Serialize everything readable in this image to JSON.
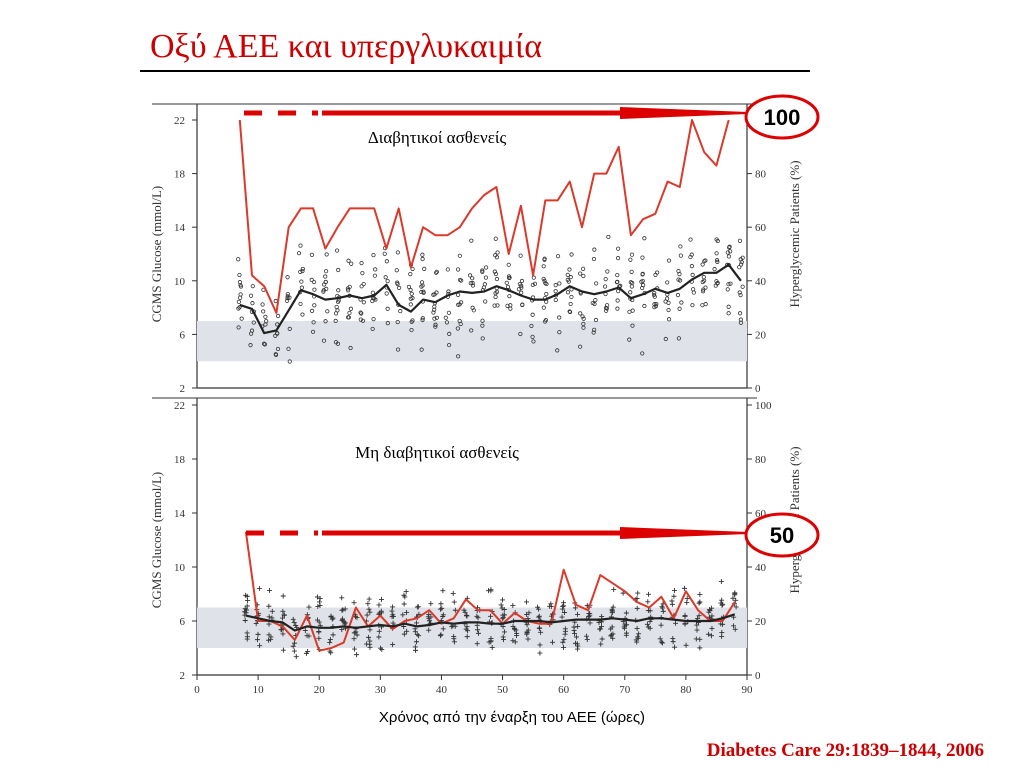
{
  "slide": {
    "title": "Οξύ ΑΕΕ και υπεργλυκαιμία",
    "x_caption": "Χρόνος από την έναρξη του ΑΕΕ (ώρες)",
    "citation": "Diabetes Care 29:1839–1844, 2006"
  },
  "colors": {
    "red": "#d93a2b",
    "arrow_red": "#dd0000",
    "dark": "#222222",
    "band": "#dfe2e8"
  },
  "chart_data": [
    {
      "type": "line",
      "panel": "top",
      "annotation_title": "Διαβητικοί ασθενείς",
      "callout": "100",
      "ylabel": "CGMS Glucose (mmol/L)",
      "y2label": "Hyperglycemic Patients (%)",
      "ylim": [
        2,
        22
      ],
      "yticks": [
        2,
        6,
        10,
        14,
        18,
        22
      ],
      "y2lim": [
        0,
        100
      ],
      "y2ticks": [
        0,
        20,
        40,
        60,
        80
      ],
      "xlim": [
        0,
        90
      ],
      "normal_band": [
        4,
        7
      ],
      "marker": "circle",
      "series": [
        {
          "role": "hyperglycemic_percent",
          "axis": "right",
          "x": [
            7,
            9,
            11,
            13,
            15,
            17,
            19,
            21,
            23,
            25,
            27,
            29,
            31,
            33,
            35,
            37,
            39,
            41,
            43,
            45,
            47,
            49,
            51,
            53,
            55,
            57,
            59,
            61,
            63,
            65,
            67,
            69,
            71,
            73,
            75,
            77,
            79,
            81,
            83,
            85,
            87
          ],
          "values": [
            100,
            42,
            38,
            28,
            60,
            67,
            67,
            52,
            60,
            67,
            67,
            67,
            52,
            67,
            45,
            60,
            57,
            57,
            60,
            67,
            72,
            75,
            50,
            68,
            42,
            70,
            70,
            77,
            60,
            80,
            80,
            90,
            57,
            63,
            65,
            77,
            75,
            100,
            88,
            83,
            100
          ]
        },
        {
          "role": "mean_glucose_mmolL",
          "axis": "left",
          "x": [
            7,
            9,
            11,
            13,
            15,
            17,
            19,
            21,
            23,
            25,
            27,
            29,
            31,
            33,
            35,
            37,
            39,
            41,
            43,
            45,
            47,
            49,
            51,
            53,
            55,
            57,
            59,
            61,
            63,
            65,
            67,
            69,
            71,
            73,
            75,
            77,
            79,
            81,
            83,
            85,
            87,
            89
          ],
          "values": [
            8.2,
            7.9,
            6.1,
            6.3,
            7.8,
            9.3,
            9.0,
            8.6,
            8.7,
            8.9,
            8.7,
            8.9,
            9.7,
            8.2,
            7.7,
            8.6,
            8.4,
            8.9,
            9.2,
            9.1,
            9.2,
            9.6,
            9.3,
            8.9,
            8.6,
            8.6,
            9.0,
            9.6,
            9.2,
            9.0,
            9.2,
            9.5,
            8.7,
            9.0,
            9.4,
            9.1,
            9.4,
            10.1,
            10.6,
            10.6,
            11.2,
            10.0
          ]
        }
      ]
    },
    {
      "type": "line",
      "panel": "bottom",
      "annotation_title": "Μη διαβητικοί ασθενείς",
      "callout": "50",
      "ylabel": "CGMS Glucose (mmol/L)",
      "y2label": "Hyperglycemic Patients (%)",
      "ylim": [
        2,
        22
      ],
      "yticks": [
        2,
        6,
        10,
        14,
        18,
        22
      ],
      "y2lim": [
        0,
        100
      ],
      "y2ticks": [
        0,
        20,
        40,
        60,
        80,
        100
      ],
      "xlim": [
        0,
        90
      ],
      "xticks": [
        0,
        10,
        20,
        30,
        40,
        50,
        60,
        70,
        80,
        90
      ],
      "normal_band": [
        4,
        7
      ],
      "marker": "plus",
      "series": [
        {
          "role": "hyperglycemic_percent",
          "axis": "right",
          "x": [
            8,
            10,
            12,
            14,
            16,
            18,
            20,
            22,
            24,
            26,
            28,
            30,
            32,
            34,
            36,
            38,
            40,
            42,
            44,
            46,
            48,
            50,
            52,
            54,
            56,
            58,
            60,
            62,
            64,
            66,
            68,
            70,
            72,
            74,
            76,
            78,
            80,
            82,
            84,
            86,
            88
          ],
          "values": [
            53,
            20,
            20,
            18,
            13,
            22,
            9,
            10,
            12,
            25,
            18,
            22,
            17,
            20,
            21,
            24,
            19,
            21,
            28,
            24,
            24,
            19,
            23,
            20,
            19,
            19,
            39,
            26,
            24,
            37,
            34,
            31,
            27,
            25,
            29,
            21,
            31,
            24,
            20,
            20,
            27
          ]
        },
        {
          "role": "mean_glucose_mmolL",
          "axis": "left",
          "x": [
            8,
            10,
            12,
            14,
            16,
            18,
            20,
            22,
            24,
            26,
            28,
            30,
            32,
            34,
            36,
            38,
            40,
            42,
            44,
            46,
            48,
            50,
            52,
            54,
            56,
            58,
            60,
            62,
            64,
            66,
            68,
            70,
            72,
            74,
            76,
            78,
            80,
            82,
            84,
            86,
            88
          ],
          "values": [
            6.4,
            6.2,
            6.0,
            5.9,
            5.3,
            5.6,
            5.5,
            5.5,
            5.6,
            5.5,
            5.6,
            5.7,
            5.6,
            5.8,
            5.6,
            5.7,
            5.9,
            5.8,
            5.9,
            5.9,
            5.8,
            5.8,
            6.0,
            6.0,
            6.0,
            5.9,
            6.0,
            6.1,
            6.1,
            6.1,
            6.2,
            6.1,
            6.0,
            6.2,
            6.2,
            6.1,
            6.0,
            6.0,
            6.0,
            6.2,
            6.5
          ]
        }
      ]
    }
  ]
}
